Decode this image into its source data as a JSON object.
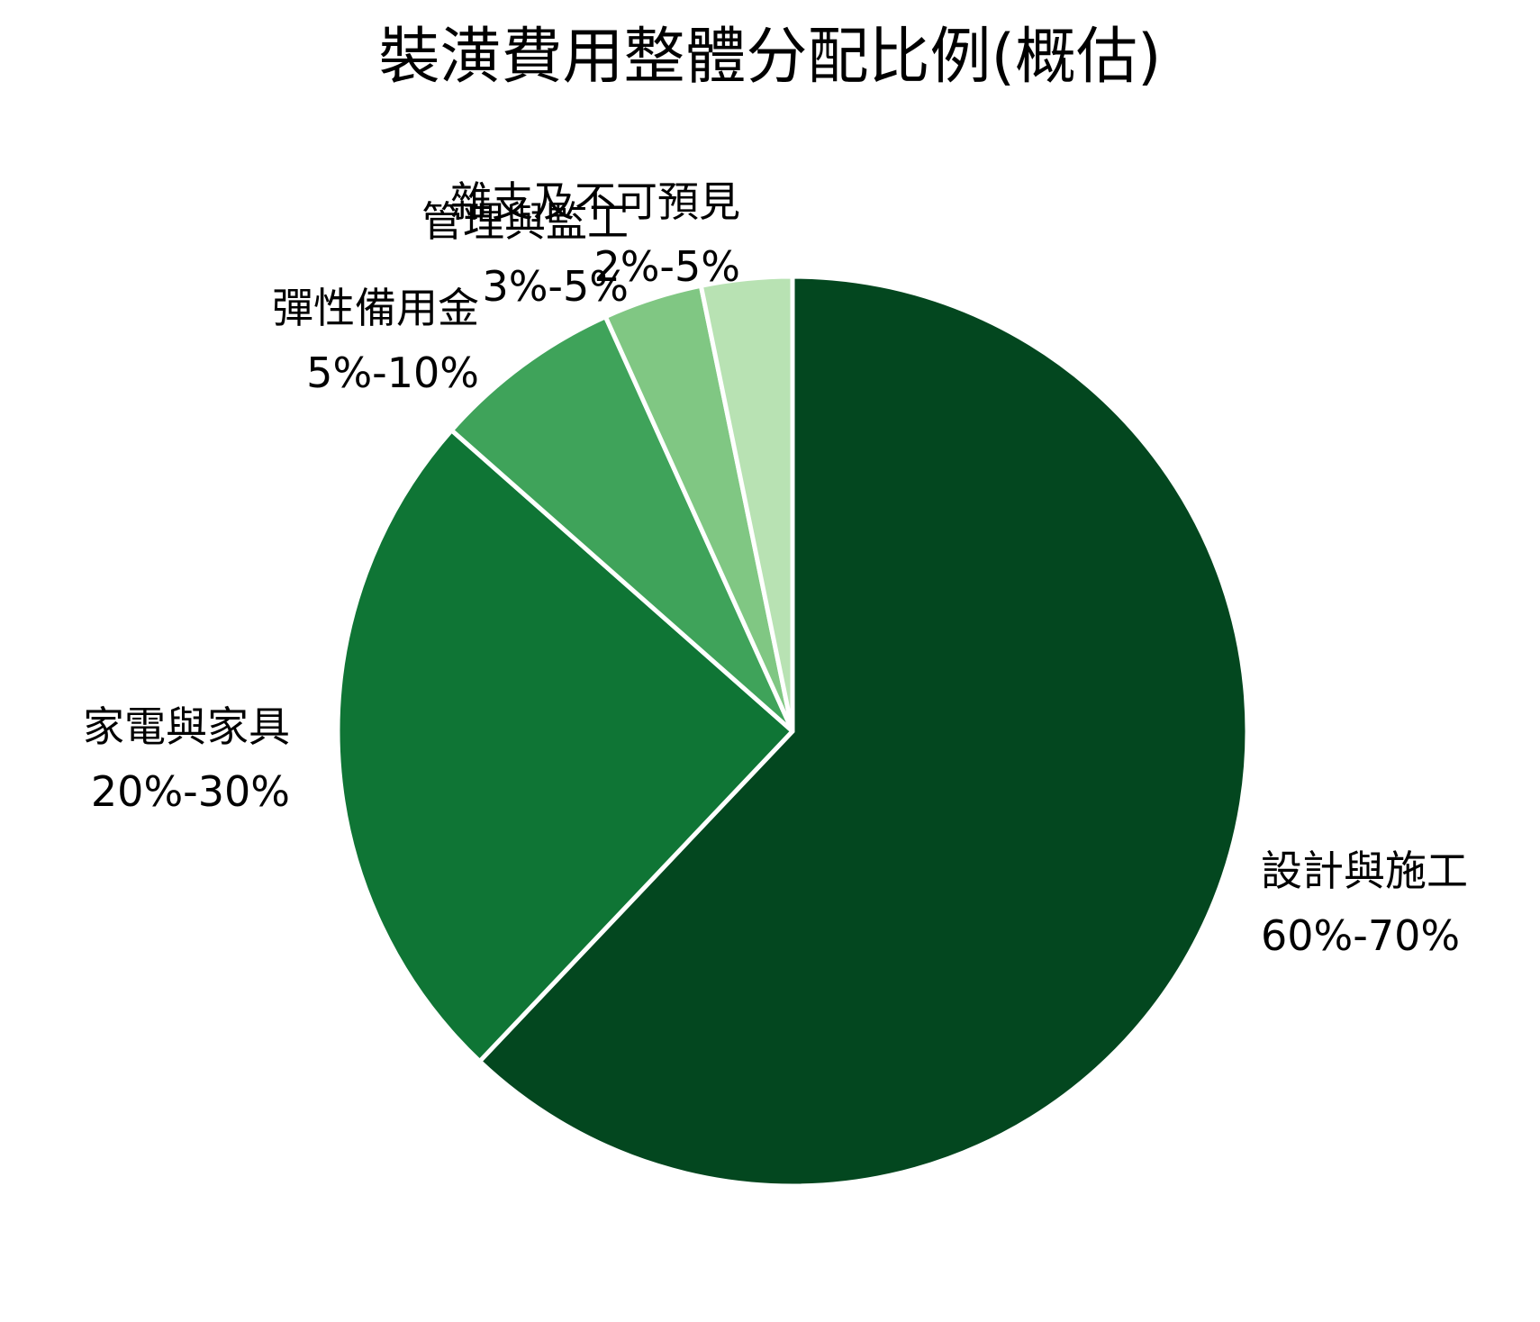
{
  "chart_data": {
    "type": "pie",
    "title": "裝潢費用整體分配比例(概估)",
    "start": "12-o'clock",
    "direction": "clockwise",
    "slice_separator_color": "#ffffff",
    "slices": [
      {
        "name": "設計與施工",
        "range_label": "60%-70%",
        "value": 63.5,
        "color": "#03471f"
      },
      {
        "name": "家電與家具",
        "range_label": "20%-30%",
        "value": 25.0,
        "color": "#0f7535"
      },
      {
        "name": "彈性備用金",
        "range_label": "5%-10%",
        "value": 6.9,
        "color": "#3fa35a"
      },
      {
        "name": "管理與監工",
        "range_label": "3%-5%",
        "value": 3.6,
        "color": "#80c783"
      },
      {
        "name": "雜支及不可預見",
        "range_label": "2%-5%",
        "value": 3.3,
        "color": "#b8e2b3"
      }
    ]
  }
}
